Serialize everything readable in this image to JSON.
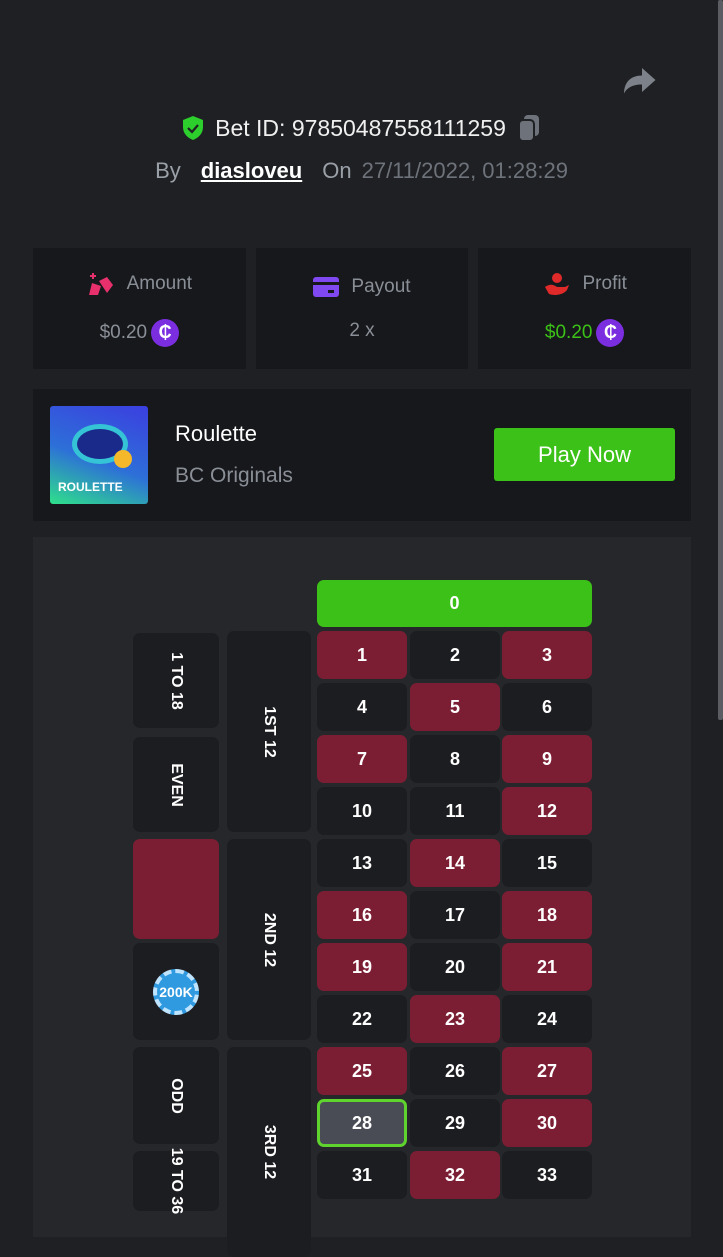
{
  "header": {
    "bet_id_label": "Bet ID:",
    "bet_id": "97850487558111259",
    "by_label": "By",
    "user": "diasloveu",
    "on_label": "On",
    "datetime": "27/11/2022, 01:28:29"
  },
  "stats": [
    {
      "label": "Amount",
      "value": "$0.20",
      "icon": "coins-icon",
      "color": "#e8306c",
      "value_color": "#8a8f97"
    },
    {
      "label": "Payout",
      "value": "2 x",
      "icon": "card-icon",
      "color": "#8048f0",
      "value_color": "#8a8f97"
    },
    {
      "label": "Profit",
      "value": "$0.20",
      "icon": "hand-coin-icon",
      "color": "#e02a2a",
      "value_color": "#3bc117"
    }
  ],
  "currency_symbol": "₵",
  "game": {
    "thumb_text": "ROULETTE",
    "name": "Roulette",
    "provider": "BC Originals",
    "play_label": "Play Now"
  },
  "board": {
    "zero": "0",
    "numbers": [
      "1",
      "2",
      "3",
      "4",
      "5",
      "6",
      "7",
      "8",
      "9",
      "10",
      "11",
      "12",
      "13",
      "14",
      "15",
      "16",
      "17",
      "18",
      "19",
      "20",
      "21",
      "22",
      "23",
      "24",
      "25",
      "26",
      "27",
      "28",
      "29",
      "30",
      "31",
      "32",
      "33"
    ],
    "red": [
      1,
      3,
      5,
      7,
      9,
      12,
      14,
      16,
      18,
      19,
      21,
      23,
      25,
      27,
      30,
      32
    ],
    "winning_number": 28,
    "dozens": [
      "1ST 12",
      "2ND 12",
      "3RD 12"
    ],
    "outside": [
      "1 TO 18",
      "EVEN",
      "",
      "",
      "ODD",
      "19 TO 36"
    ],
    "chip_label": "200K",
    "colors": {
      "red": "#7c1e33",
      "black": "#1c1d21",
      "green": "#3bc117"
    }
  }
}
